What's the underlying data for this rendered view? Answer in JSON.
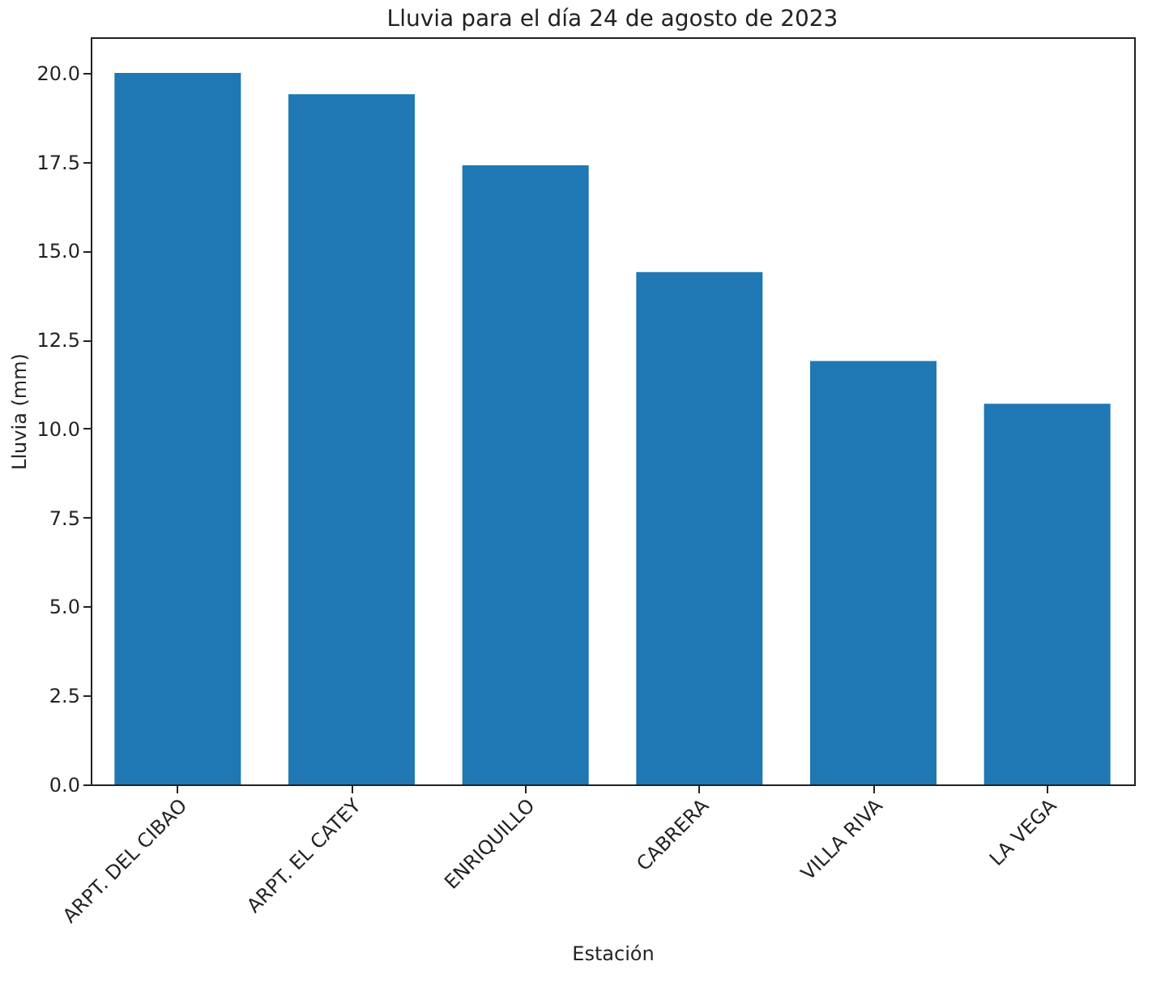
{
  "chart_data": {
    "type": "bar",
    "title": "Lluvia para el día 24 de agosto de 2023",
    "xlabel": "Estación",
    "ylabel": "Lluvia (mm)",
    "categories": [
      "ARPT. DEL CIBAO",
      "ARPT. EL CATEY",
      "ENRIQUILLO",
      "CABRERA",
      "VILLA RIVA",
      "LA VEGA"
    ],
    "values": [
      20.0,
      19.4,
      17.4,
      14.4,
      11.9,
      10.7
    ],
    "color": "#1f77b4",
    "ylim": [
      0,
      21.0
    ],
    "yticks": [
      {
        "value": 0,
        "label": "0.0"
      },
      {
        "value": 2.5,
        "label": "2.5"
      },
      {
        "value": 5,
        "label": "5.0"
      },
      {
        "value": 7.5,
        "label": "7.5"
      },
      {
        "value": 10,
        "label": "10.0"
      },
      {
        "value": 12.5,
        "label": "12.5"
      },
      {
        "value": 15,
        "label": "15.0"
      },
      {
        "value": 17.5,
        "label": "17.5"
      },
      {
        "value": 20,
        "label": "20.0"
      }
    ],
    "grid": false
  }
}
